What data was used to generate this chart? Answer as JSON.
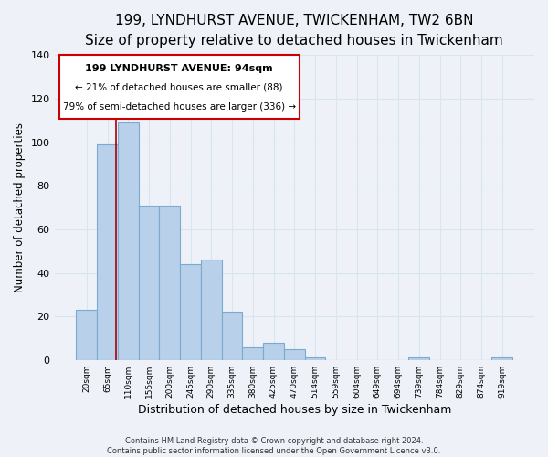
{
  "title": "199, LYNDHURST AVENUE, TWICKENHAM, TW2 6BN",
  "subtitle": "Size of property relative to detached houses in Twickenham",
  "xlabel": "Distribution of detached houses by size in Twickenham",
  "ylabel": "Number of detached properties",
  "categories": [
    "20sqm",
    "65sqm",
    "110sqm",
    "155sqm",
    "200sqm",
    "245sqm",
    "290sqm",
    "335sqm",
    "380sqm",
    "425sqm",
    "470sqm",
    "514sqm",
    "559sqm",
    "604sqm",
    "649sqm",
    "694sqm",
    "739sqm",
    "784sqm",
    "829sqm",
    "874sqm",
    "919sqm"
  ],
  "values": [
    23,
    99,
    109,
    71,
    71,
    44,
    46,
    22,
    6,
    8,
    5,
    1,
    0,
    0,
    0,
    0,
    1,
    0,
    0,
    0,
    1
  ],
  "bar_color": "#b8d0ea",
  "vline_x": 1.4,
  "vline_color": "#aa0000",
  "ylim": [
    0,
    140
  ],
  "yticks": [
    0,
    20,
    40,
    60,
    80,
    100,
    120,
    140
  ],
  "annotation_title": "199 LYNDHURST AVENUE: 94sqm",
  "annotation_line1": "← 21% of detached houses are smaller (88)",
  "annotation_line2": "79% of semi-detached houses are larger (336) →",
  "footer_line1": "Contains HM Land Registry data © Crown copyright and database right 2024.",
  "footer_line2": "Contains public sector information licensed under the Open Government Licence v3.0.",
  "background_color": "#eef2f8",
  "grid_color": "#d8e4f0",
  "title_fontsize": 11,
  "subtitle_fontsize": 9.5,
  "xlabel_fontsize": 9,
  "ylabel_fontsize": 8.5
}
